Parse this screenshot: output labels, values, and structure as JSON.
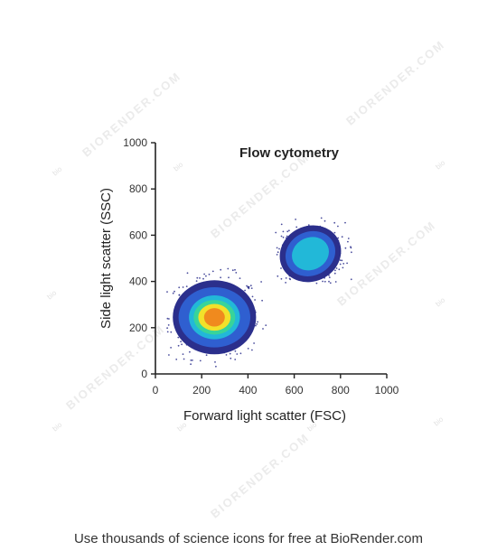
{
  "watermark": {
    "brand": "BIORENDER.COM",
    "mark": "bio"
  },
  "footer": {
    "text": "Use thousands of science icons for free at BioRender.com"
  },
  "chart_data": {
    "type": "scatter",
    "title": "Flow cytometry",
    "xlabel": "Forward light scatter (FSC)",
    "ylabel": "Side light scatter (SSC)",
    "xlim": [
      0,
      1000
    ],
    "ylim": [
      0,
      1000
    ],
    "xticks": [
      0,
      200,
      400,
      600,
      800,
      1000
    ],
    "yticks": [
      0,
      200,
      400,
      600,
      800,
      1000
    ],
    "grid": false,
    "density_colormap": [
      "#2b2f8c",
      "#2f5fd0",
      "#22b8d8",
      "#38d49a",
      "#f2e12a",
      "#f08a1e",
      "#d61f1f"
    ],
    "populations": [
      {
        "center": [
          255,
          245
        ],
        "contours": [
          {
            "level": 1,
            "rx": 180,
            "ry": 160
          },
          {
            "level": 2,
            "rx": 155,
            "ry": 130
          },
          {
            "level": 3,
            "rx": 110,
            "ry": 95
          },
          {
            "level": 4,
            "rx": 90,
            "ry": 75
          },
          {
            "level": 5,
            "rx": 70,
            "ry": 58
          },
          {
            "level": 6,
            "rx": 45,
            "ry": 40
          }
        ],
        "range_x": [
          50,
          490
        ],
        "range_y": [
          25,
          460
        ]
      },
      {
        "center": [
          670,
          520
        ],
        "contours": [
          {
            "level": 1,
            "rx": 135,
            "ry": 120
          },
          {
            "level": 2,
            "rx": 110,
            "ry": 95
          },
          {
            "level": 3,
            "rx": 82,
            "ry": 70
          }
        ],
        "range_x": [
          520,
          850
        ],
        "range_y": [
          390,
          720
        ]
      }
    ]
  }
}
